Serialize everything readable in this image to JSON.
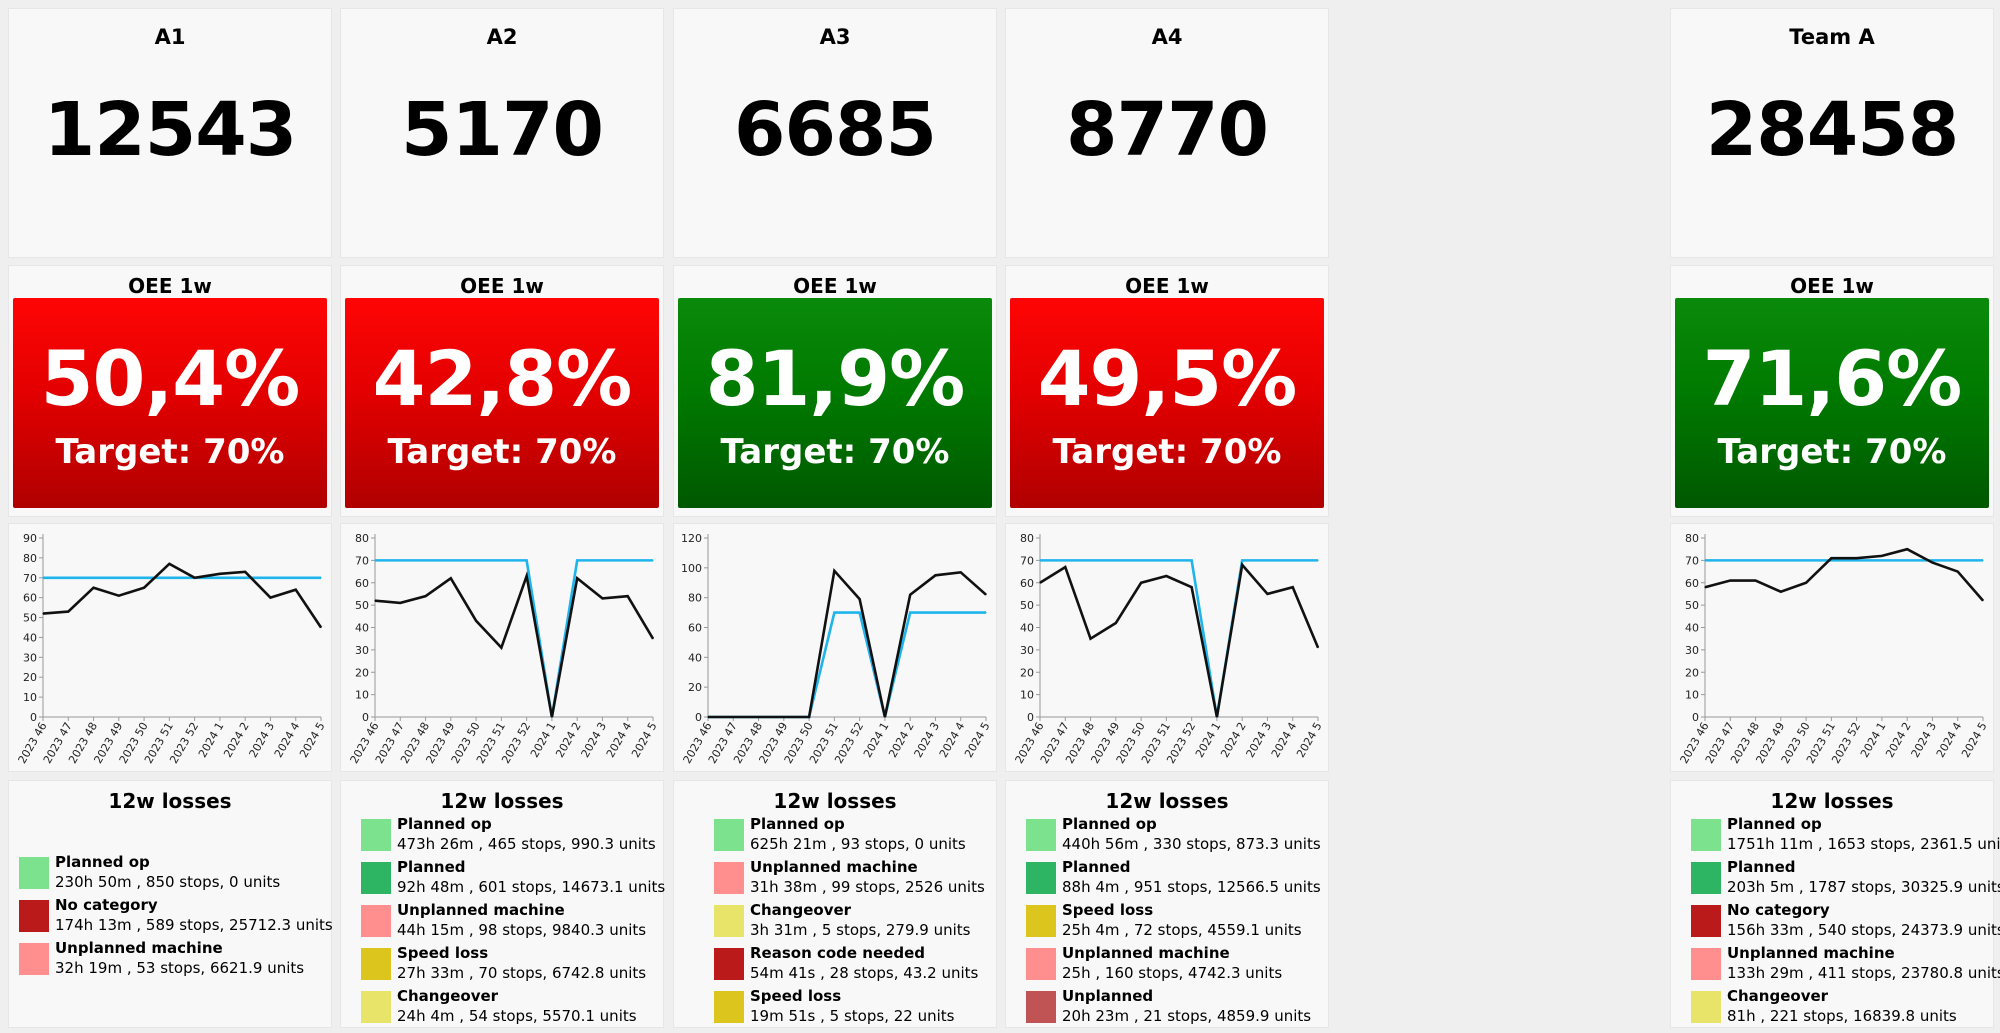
{
  "target_color": "#1eb4ec",
  "actual_color": "#111111",
  "losses_title": "12w losses",
  "oee_title": "OEE 1w",
  "machines": [
    {
      "title": "A1",
      "count": "12543",
      "oee": "50,4%",
      "target": "Target: 70%",
      "status": "red",
      "losses": [
        {
          "name": "Planned op",
          "detail": "230h 50m , 850 stops,  0 units",
          "color": "#7de28d"
        },
        {
          "name": "No category",
          "detail": "174h 13m , 589 stops,  25712.3 units",
          "color": "#bb1a1a"
        },
        {
          "name": "Unplanned machine",
          "detail": "32h 19m , 53 stops,  6621.9 units",
          "color": "#ff8f8f"
        }
      ]
    },
    {
      "title": "A2",
      "count": "5170",
      "oee": "42,8%",
      "target": "Target: 70%",
      "status": "red",
      "losses": [
        {
          "name": "Planned op",
          "detail": "473h 26m , 465 stops,  990.3 units",
          "color": "#7de28d"
        },
        {
          "name": "Planned",
          "detail": "92h 48m , 601 stops,  14673.1 units",
          "color": "#2eb563"
        },
        {
          "name": "Unplanned machine",
          "detail": "44h 15m , 98 stops,  9840.3 units",
          "color": "#ff8f8f"
        },
        {
          "name": "Speed loss",
          "detail": "27h 33m , 70 stops,  6742.8 units",
          "color": "#dcc51c"
        },
        {
          "name": "Changeover",
          "detail": "24h 4m , 54 stops,  5570.1 units",
          "color": "#e8e46a"
        }
      ]
    },
    {
      "title": "A3",
      "count": "6685",
      "oee": "81,9%",
      "target": "Target: 70%",
      "status": "green",
      "losses": [
        {
          "name": "Planned op",
          "detail": "625h 21m , 93 stops,  0 units",
          "color": "#7de28d"
        },
        {
          "name": "Unplanned machine",
          "detail": "31h 38m , 99 stops,  2526 units",
          "color": "#ff8f8f"
        },
        {
          "name": "Changeover",
          "detail": "3h 31m , 5 stops,  279.9 units",
          "color": "#e8e46a"
        },
        {
          "name": "Reason code needed",
          "detail": "54m 41s , 28 stops,  43.2 units",
          "color": "#bb1a1a"
        },
        {
          "name": "Speed loss",
          "detail": "19m 51s , 5 stops,  22 units",
          "color": "#dcc51c"
        }
      ]
    },
    {
      "title": "A4",
      "count": "8770",
      "oee": "49,5%",
      "target": "Target: 70%",
      "status": "red",
      "losses": [
        {
          "name": "Planned op",
          "detail": "440h 56m , 330 stops,  873.3 units",
          "color": "#7de28d"
        },
        {
          "name": "Planned",
          "detail": "88h 4m , 951 stops,  12566.5 units",
          "color": "#2eb563"
        },
        {
          "name": "Speed loss",
          "detail": "25h 4m , 72 stops,  4559.1 units",
          "color": "#dcc51c"
        },
        {
          "name": "Unplanned machine",
          "detail": "25h , 160 stops,  4742.3 units",
          "color": "#ff8f8f"
        },
        {
          "name": "Unplanned",
          "detail": "20h 23m , 21 stops,  4859.9 units",
          "color": "#c05454"
        }
      ]
    },
    {
      "title": "Team A",
      "count": "28458",
      "oee": "71,6%",
      "target": "Target: 70%",
      "status": "green",
      "losses": [
        {
          "name": "Planned op",
          "detail": "1751h 11m , 1653 stops,  2361.5 units",
          "color": "#7de28d"
        },
        {
          "name": "Planned",
          "detail": "203h 5m , 1787 stops,  30325.9 units",
          "color": "#2eb563"
        },
        {
          "name": "No category",
          "detail": "156h 33m , 540 stops,  24373.9 units",
          "color": "#bb1a1a"
        },
        {
          "name": "Unplanned machine",
          "detail": "133h 29m , 411 stops,  23780.8 units",
          "color": "#ff8f8f"
        },
        {
          "name": "Changeover",
          "detail": "81h , 221 stops,  16839.8 units",
          "color": "#e8e46a"
        }
      ]
    }
  ],
  "chart_data": [
    {
      "type": "line",
      "title": "",
      "x": [
        "2023 46",
        "2023 47",
        "2023 48",
        "2023 49",
        "2023 50",
        "2023 51",
        "2023 52",
        "2024 1",
        "2024 2",
        "2024 3",
        "2024 4",
        "2024 5"
      ],
      "ylim": [
        0,
        90
      ],
      "yticks": [
        0,
        10,
        20,
        30,
        40,
        50,
        60,
        70,
        80,
        90
      ],
      "series": [
        {
          "values": [
            52,
            53,
            65,
            61,
            65,
            77,
            70,
            72,
            73,
            60,
            64,
            45
          ]
        },
        {
          "values": [
            70,
            70,
            70,
            70,
            70,
            70,
            70,
            70,
            70,
            70,
            70,
            70
          ]
        }
      ]
    },
    {
      "type": "line",
      "title": "",
      "x": [
        "2023 46",
        "2023 47",
        "2023 48",
        "2023 49",
        "2023 50",
        "2023 51",
        "2023 52",
        "2024 1",
        "2024 2",
        "2024 3",
        "2024 4",
        "2024 5"
      ],
      "ylim": [
        0,
        80
      ],
      "yticks": [
        0,
        10,
        20,
        30,
        40,
        50,
        60,
        70,
        80
      ],
      "series": [
        {
          "values": [
            52,
            51,
            54,
            62,
            43,
            31,
            63,
            0,
            62,
            53,
            54,
            35
          ]
        },
        {
          "values": [
            70,
            70,
            70,
            70,
            70,
            70,
            70,
            0,
            70,
            70,
            70,
            70
          ]
        }
      ]
    },
    {
      "type": "line",
      "title": "",
      "x": [
        "2023 46",
        "2023 47",
        "2023 48",
        "2023 49",
        "2023 50",
        "2023 51",
        "2023 52",
        "2024 1",
        "2024 2",
        "2024 3",
        "2024 4",
        "2024 5"
      ],
      "ylim": [
        0,
        120
      ],
      "yticks": [
        0,
        20,
        40,
        60,
        80,
        100,
        120
      ],
      "series": [
        {
          "values": [
            0,
            0,
            0,
            0,
            0,
            98,
            79,
            0,
            82,
            95,
            97,
            82
          ]
        },
        {
          "values": [
            0,
            0,
            0,
            0,
            0,
            70,
            70,
            0,
            70,
            70,
            70,
            70
          ]
        }
      ]
    },
    {
      "type": "line",
      "title": "",
      "x": [
        "2023 46",
        "2023 47",
        "2023 48",
        "2023 49",
        "2023 50",
        "2023 51",
        "2023 52",
        "2024 1",
        "2024 2",
        "2024 3",
        "2024 4",
        "2024 5"
      ],
      "ylim": [
        0,
        80
      ],
      "yticks": [
        0,
        10,
        20,
        30,
        40,
        50,
        60,
        70,
        80
      ],
      "series": [
        {
          "values": [
            60,
            67,
            35,
            42,
            60,
            63,
            58,
            0,
            68,
            55,
            58,
            31
          ]
        },
        {
          "values": [
            70,
            70,
            70,
            70,
            70,
            70,
            70,
            0,
            70,
            70,
            70,
            70
          ]
        }
      ]
    },
    {
      "type": "line",
      "title": "",
      "x": [
        "2023 46",
        "2023 47",
        "2023 48",
        "2023 49",
        "2023 50",
        "2023 51",
        "2023 52",
        "2024 1",
        "2024 2",
        "2024 3",
        "2024 4",
        "2024 5"
      ],
      "ylim": [
        0,
        80
      ],
      "yticks": [
        0,
        10,
        20,
        30,
        40,
        50,
        60,
        70,
        80
      ],
      "series": [
        {
          "values": [
            58,
            61,
            61,
            56,
            60,
            71,
            71,
            72,
            75,
            69,
            65,
            52
          ]
        },
        {
          "values": [
            70,
            70,
            70,
            70,
            70,
            70,
            70,
            70,
            70,
            70,
            70,
            70
          ]
        }
      ]
    }
  ]
}
